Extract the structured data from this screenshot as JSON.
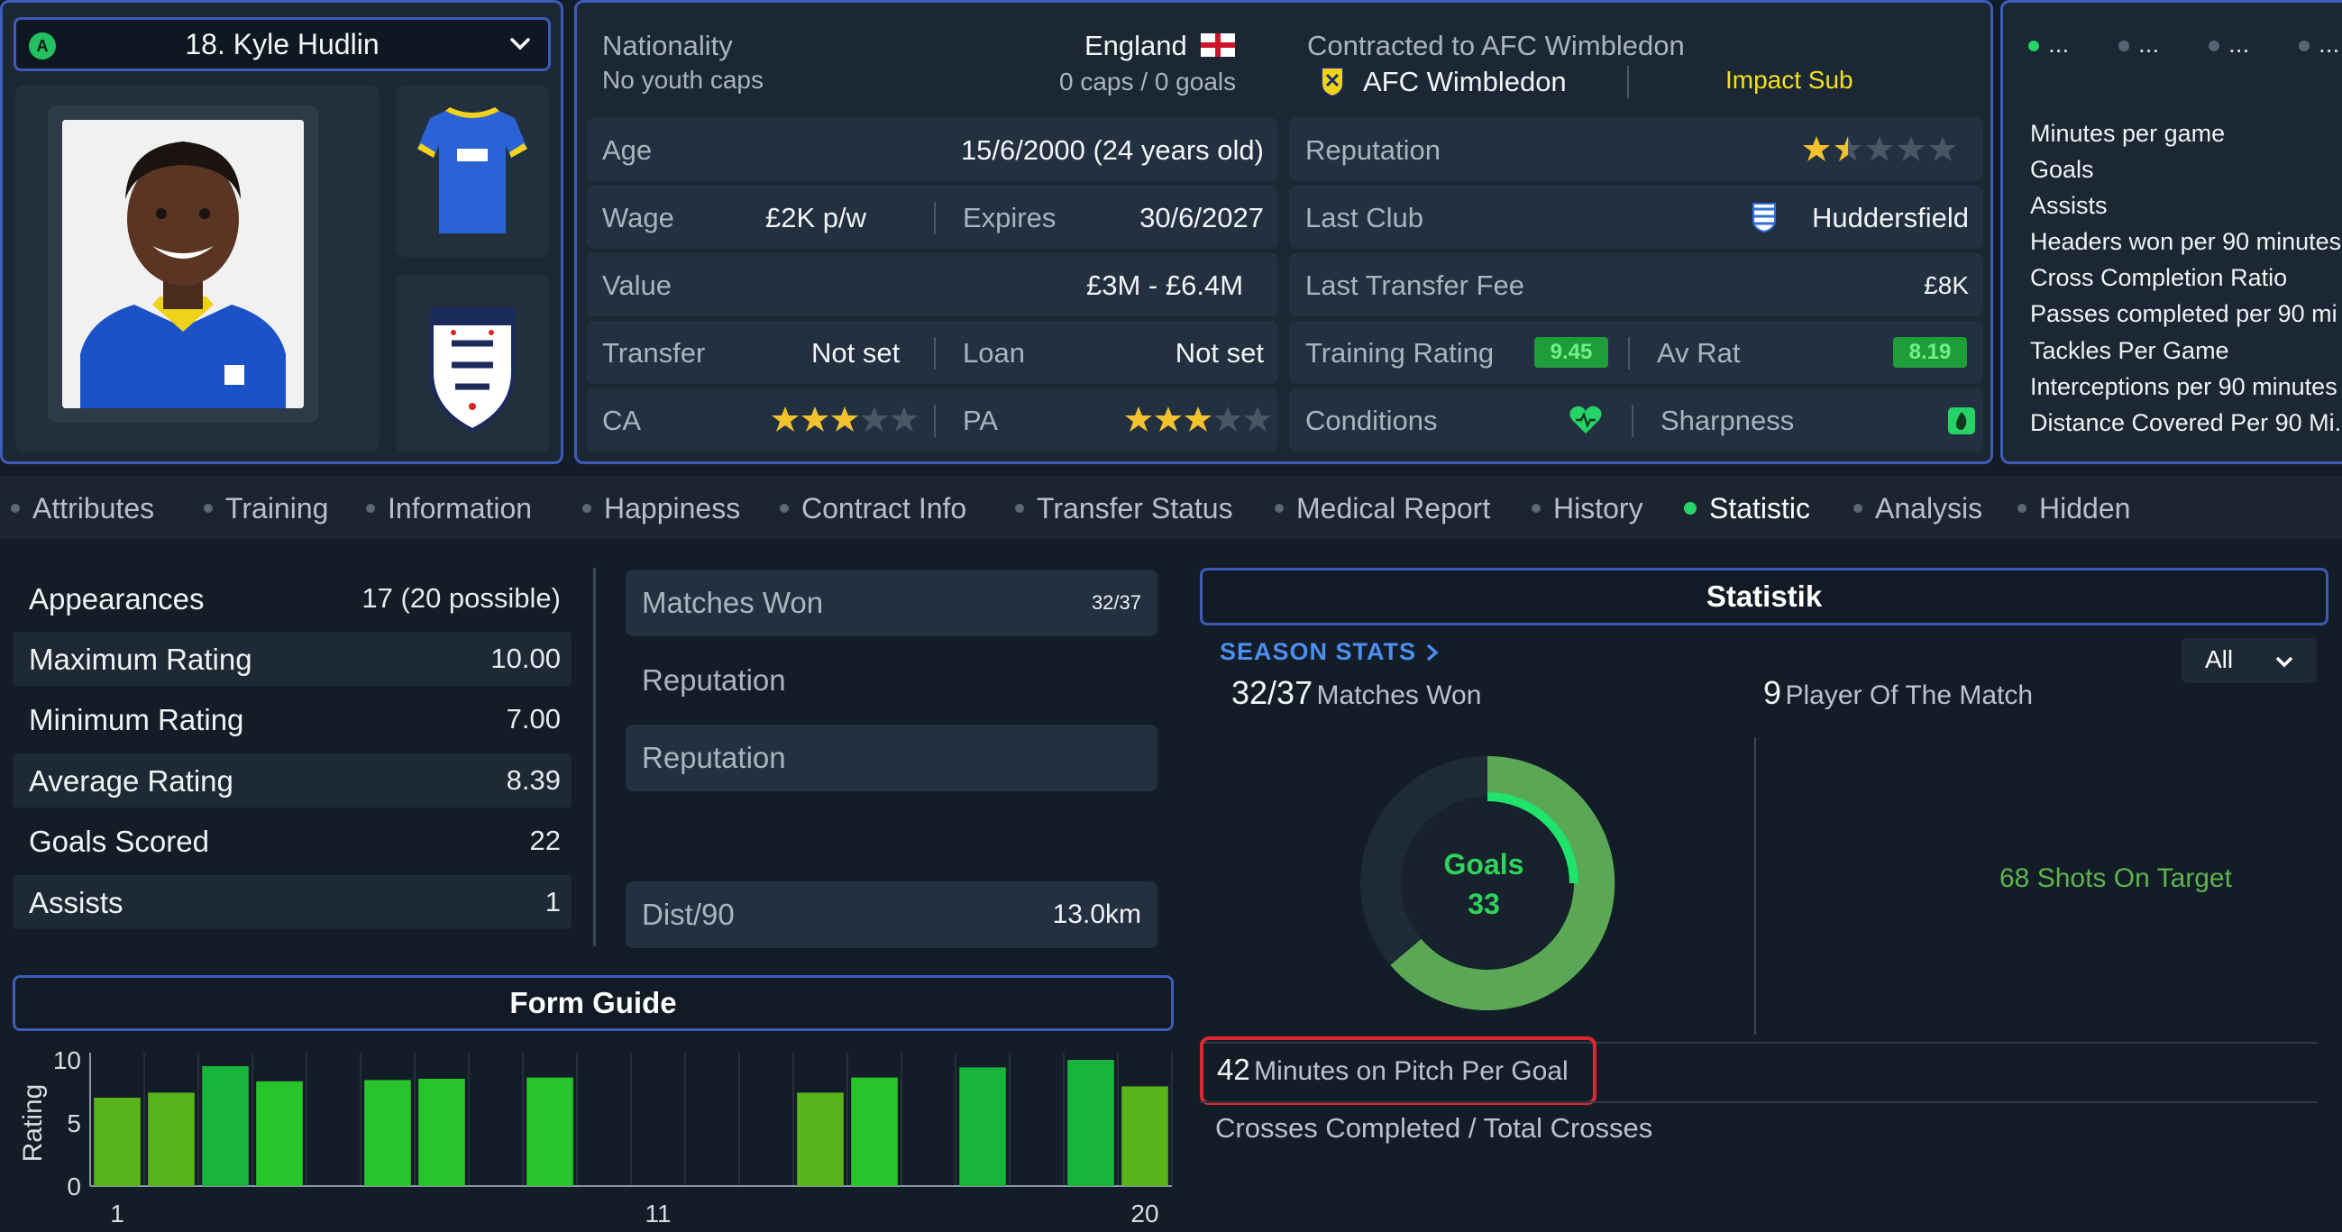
{
  "player": {
    "position_badge": "A",
    "name": "18. Kyle Hudlin"
  },
  "info": {
    "nationality_label": "Nationality",
    "nationality_value": "England",
    "youth_caps": "No youth caps",
    "caps_goals": "0 caps / 0 goals",
    "contracted_label": "Contracted to AFC Wimbledon",
    "club_name": "AFC Wimbledon",
    "role": "Impact Sub",
    "age_label": "Age",
    "age_value": "15/6/2000 (24 years old)",
    "reputation_label": "Reputation",
    "reputation_stars": 1.5,
    "wage_label": "Wage",
    "wage_value": "£2K p/w",
    "expires_label": "Expires",
    "expires_value": "30/6/2027",
    "last_club_label": "Last Club",
    "last_club_value": "Huddersfield",
    "value_label": "Value",
    "value_value": "£3M - £6.4M",
    "last_fee_label": "Last Transfer Fee",
    "last_fee_value": "£8K",
    "transfer_label": "Transfer",
    "transfer_value": "Not set",
    "loan_label": "Loan",
    "loan_value": "Not set",
    "training_label": "Training Rating",
    "training_value": "9.45",
    "avrat_label": "Av Rat",
    "avrat_value": "8.19",
    "ca_label": "CA",
    "ca_stars": 3,
    "pa_label": "PA",
    "pa_stars": 3,
    "conditions_label": "Conditions",
    "sharpness_label": "Sharpness"
  },
  "mini": {
    "tabs": [
      "...",
      "...",
      "...",
      "..."
    ],
    "rows": [
      "Minutes per game",
      "Goals",
      "Assists",
      "Headers won per 90 minutes",
      "Cross Completion Ratio",
      "Passes completed per 90 mi",
      "Tackles Per Game",
      "Interceptions per 90 minutes",
      "Distance Covered Per 90 Mi."
    ]
  },
  "tabs": [
    {
      "label": "Attributes",
      "active": false
    },
    {
      "label": "Training",
      "active": false
    },
    {
      "label": "Information",
      "active": false
    },
    {
      "label": "Happiness",
      "active": false
    },
    {
      "label": "Contract Info",
      "active": false
    },
    {
      "label": "Transfer Status",
      "active": false
    },
    {
      "label": "Medical Report",
      "active": false
    },
    {
      "label": "History",
      "active": false
    },
    {
      "label": "Statistic",
      "active": true
    },
    {
      "label": "Analysis",
      "active": false
    },
    {
      "label": "Hidden",
      "active": false
    }
  ],
  "career": [
    {
      "label": "Appearances",
      "value": "17 (20 possible)"
    },
    {
      "label": "Maximum Rating",
      "value": "10.00"
    },
    {
      "label": "Minimum Rating",
      "value": "7.00"
    },
    {
      "label": "Average Rating",
      "value": "8.39"
    },
    {
      "label": "Goals Scored",
      "value": "22"
    },
    {
      "label": "Assists",
      "value": "1"
    }
  ],
  "middle": {
    "matches_won_label": "Matches Won",
    "matches_won_value": "32/37",
    "reputation_a": "Reputation",
    "reputation_b": "Reputation",
    "dist_label": "Dist/90",
    "dist_value": "13.0km"
  },
  "form_guide": {
    "title": "Form Guide"
  },
  "chart_data": {
    "type": "bar",
    "x": [
      1,
      2,
      3,
      4,
      5,
      6,
      7,
      8,
      9,
      10,
      11,
      12,
      13,
      14,
      15,
      16,
      17,
      18,
      19,
      20
    ],
    "values": [
      7.0,
      7.4,
      9.5,
      8.3,
      null,
      8.4,
      8.5,
      null,
      8.6,
      null,
      null,
      null,
      null,
      7.4,
      8.6,
      null,
      9.4,
      null,
      10.0,
      7.9
    ],
    "colors": [
      "#58b41a",
      "#58b41a",
      "#18b43c",
      "#28c42c",
      null,
      "#28c42c",
      "#28c42c",
      null,
      "#28c42c",
      null,
      null,
      null,
      null,
      "#58b41a",
      "#28c42c",
      null,
      "#18b43c",
      null,
      "#18b43c",
      "#58b41a"
    ],
    "xticks": [
      "1",
      "11",
      "20"
    ],
    "yticks": [
      "0",
      "5",
      "10"
    ],
    "ylabel": "Rating",
    "ylim": [
      0,
      10
    ]
  },
  "statistik": {
    "title": "Statistik",
    "season_link": "SEASON STATS",
    "filter": "All",
    "matches_won_num": "32/37",
    "matches_won_lbl": "Matches Won",
    "potm_num": "9",
    "potm_lbl": "Player Of The Match",
    "donut_label": "Goals",
    "donut_value": "33",
    "shots": "68 Shots On Target",
    "minutes_num": "42",
    "minutes_lbl": "Minutes on Pitch Per Goal",
    "crosses": "Crosses Completed / Total Crosses"
  },
  "colors": {
    "accent_border": "#3f5bb8",
    "active_dot": "#25d366",
    "highlight_box": "#e0262e",
    "donut_outer": "#5aa856",
    "donut_inner": "#1fe36a"
  }
}
